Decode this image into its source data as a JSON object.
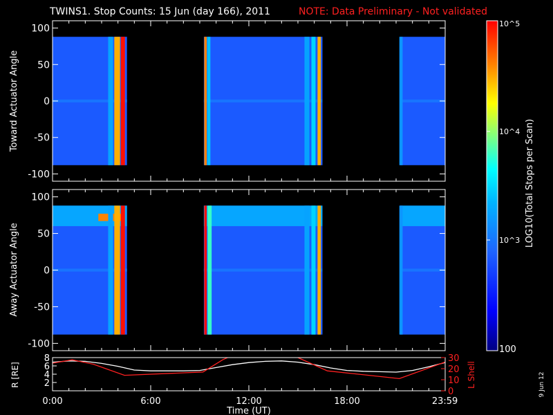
{
  "header": {
    "title": "TWINS1. Stop Counts: 15 Jun (day 166), 2011",
    "note": "NOTE: Data Preliminary - Not validated"
  },
  "colorbar": {
    "label": "LOG10(Total Stops per Scan)",
    "ticks": [
      "10^5",
      "10^4",
      "10^3",
      "100"
    ],
    "colormap": [
      "#000080",
      "#0000ff",
      "#1e64ff",
      "#00b4ff",
      "#00ffff",
      "#7fff7f",
      "#ffff00",
      "#ff8000",
      "#ff0000"
    ]
  },
  "side_stamp": "9 Jun 12",
  "chart_data": [
    {
      "type": "heatmap",
      "panel": "top",
      "title": "",
      "xlabel": "",
      "ylabel": "Toward Actuator Angle",
      "xlim": [
        0,
        24
      ],
      "ylim": [
        -110,
        110
      ],
      "yticks": [
        100,
        50,
        0,
        -50,
        -100
      ],
      "z_units": "LOG10(Total Stops per Scan)",
      "zlim": [
        100,
        100000
      ],
      "angle_range": [
        -88,
        88
      ],
      "background_level": 700,
      "data_intervals_hours": [
        [
          0.0,
          4.55
        ],
        [
          9.25,
          16.5
        ],
        [
          21.25,
          24.0
        ]
      ],
      "bright_bands": [
        {
          "t": 3.55,
          "w": 0.3,
          "level": 1800
        },
        {
          "t": 3.95,
          "w": 0.35,
          "level": 30000
        },
        {
          "t": 4.3,
          "w": 0.25,
          "level": 90000
        },
        {
          "t": 9.35,
          "w": 0.15,
          "level": 40000
        },
        {
          "t": 9.55,
          "w": 0.2,
          "level": 2500
        },
        {
          "t": 15.55,
          "w": 0.3,
          "level": 1800
        },
        {
          "t": 15.95,
          "w": 0.25,
          "level": 3000
        },
        {
          "t": 16.3,
          "w": 0.2,
          "level": 30000
        },
        {
          "t": 21.3,
          "w": 0.2,
          "level": 1500
        }
      ]
    },
    {
      "type": "heatmap",
      "panel": "middle",
      "title": "",
      "xlabel": "",
      "ylabel": "Away Actuator Angle",
      "xlim": [
        0,
        24
      ],
      "ylim": [
        -110,
        110
      ],
      "yticks": [
        100,
        50,
        0,
        -50,
        -100
      ],
      "z_units": "LOG10(Total Stops per Scan)",
      "zlim": [
        100,
        100000
      ],
      "angle_range": [
        -88,
        88
      ],
      "background_level": 700,
      "data_intervals_hours": [
        [
          0.0,
          4.55
        ],
        [
          9.25,
          16.5
        ],
        [
          21.25,
          24.0
        ]
      ],
      "bright_bands": [
        {
          "t": 3.55,
          "w": 0.3,
          "level": 1800
        },
        {
          "t": 3.95,
          "w": 0.35,
          "level": 30000
        },
        {
          "t": 4.3,
          "w": 0.25,
          "level": 90000
        },
        {
          "t": 9.35,
          "w": 0.15,
          "level": 90000
        },
        {
          "t": 9.6,
          "w": 0.25,
          "level": 6000
        },
        {
          "t": 15.55,
          "w": 0.3,
          "level": 1800
        },
        {
          "t": 15.95,
          "w": 0.25,
          "level": 3000
        },
        {
          "t": 16.3,
          "w": 0.2,
          "level": 30000
        },
        {
          "t": 21.3,
          "w": 0.2,
          "level": 1500
        }
      ],
      "high_angle_enhancement": {
        "angle_min": 60,
        "level": 2500,
        "hot_spot": {
          "t_range": [
            2.8,
            4.2
          ],
          "angle": 72,
          "level": 40000
        }
      }
    },
    {
      "type": "line",
      "panel": "bottom",
      "title": "",
      "xlabel": "Time (UT)",
      "xlim": [
        0,
        24
      ],
      "xticks": [
        0,
        6,
        12,
        18,
        23.983
      ],
      "xtick_labels": [
        "0:00",
        "6:00",
        "12:00",
        "18:00",
        "23:59"
      ],
      "ylabel_left": "R [RE]",
      "ylim_left": [
        0,
        8
      ],
      "yticks_left": [
        2,
        4,
        6,
        8
      ],
      "ylabel_right": "L Shell",
      "ylim_right": [
        0,
        30
      ],
      "yticks_right": [
        0,
        10,
        20,
        30
      ],
      "series": [
        {
          "color": "#ffffff",
          "axis": "left",
          "x": [
            0,
            1,
            2,
            3,
            4,
            5,
            6,
            7,
            8,
            9,
            10,
            11,
            12,
            13,
            14,
            15,
            16,
            17,
            18,
            19,
            20,
            21,
            22,
            23,
            24
          ],
          "y": [
            6.9,
            7.2,
            7.1,
            6.6,
            5.9,
            5.0,
            4.8,
            4.8,
            4.8,
            4.9,
            5.6,
            6.3,
            6.8,
            7.1,
            7.2,
            6.9,
            6.3,
            5.5,
            4.9,
            4.7,
            4.6,
            4.5,
            4.9,
            5.8,
            6.8
          ]
        },
        {
          "color": "#ff2020",
          "axis": "right",
          "x": [
            0,
            1.2,
            2.5,
            4.4,
            9.2,
            10.4,
            11.0
          ],
          "y": [
            25,
            28,
            24,
            14,
            17,
            28,
            32
          ]
        },
        {
          "color": "#ff2020",
          "axis": "right",
          "x": [
            14.6,
            15.0,
            16.8,
            21.2,
            24.0
          ],
          "y": [
            32,
            30,
            18,
            11,
            26
          ]
        }
      ]
    }
  ]
}
